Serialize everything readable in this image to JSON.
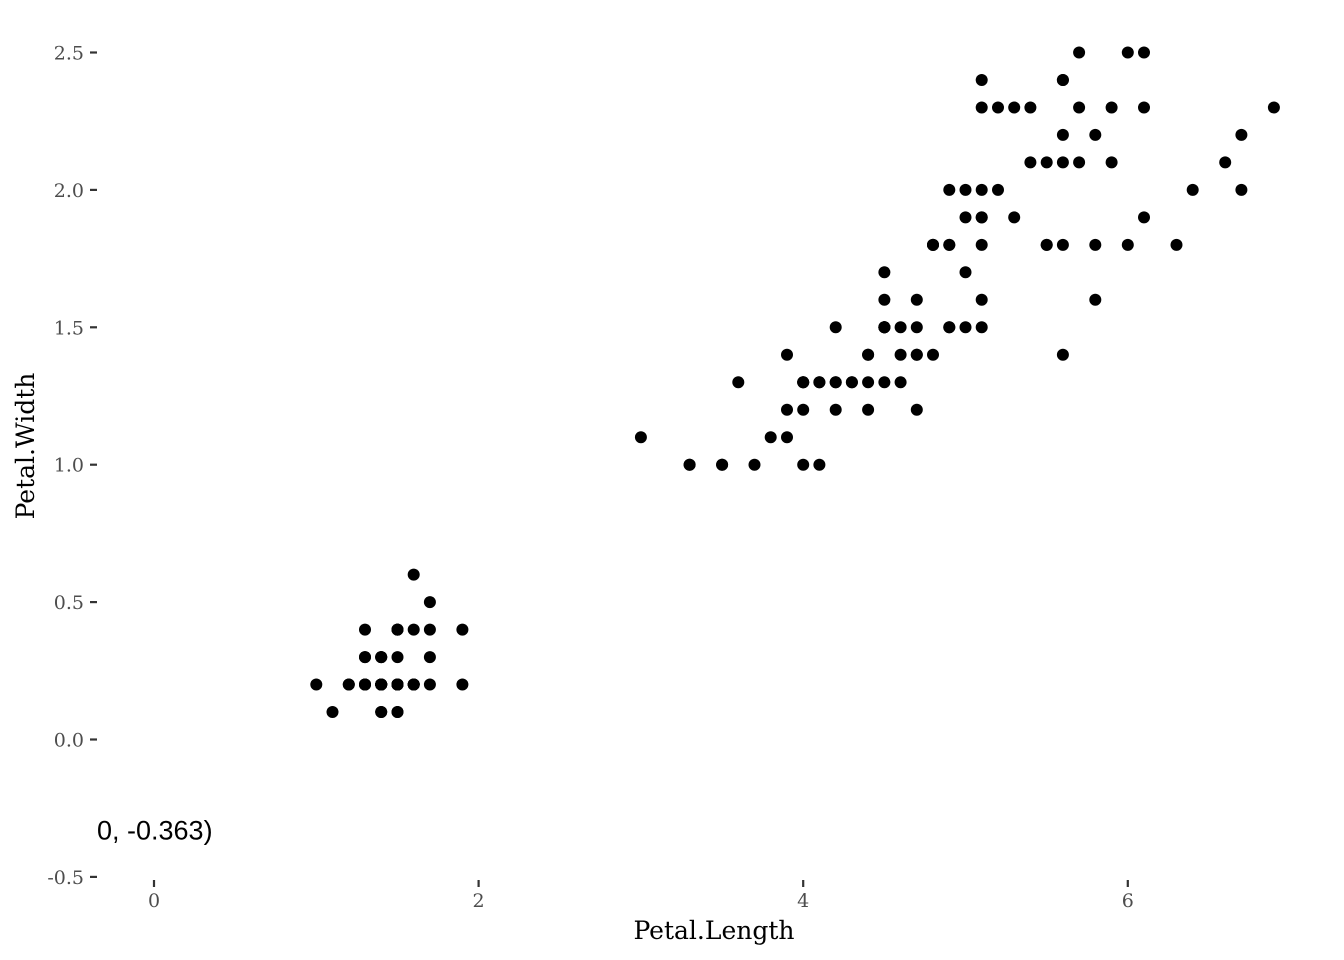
{
  "chart_data": {
    "type": "scatter",
    "title": "",
    "xlabel": "Petal.Length",
    "ylabel": "Petal.Width",
    "xlim": [
      -0.35,
      7.1
    ],
    "ylim": [
      -0.5,
      2.6
    ],
    "x_ticks": [
      0,
      2,
      4,
      6
    ],
    "x_tick_labels": [
      "0",
      "2",
      "4",
      "6"
    ],
    "y_ticks": [
      -0.5,
      0.0,
      0.5,
      1.0,
      1.5,
      2.0,
      2.5
    ],
    "y_tick_labels": [
      "-0.5",
      "0.0",
      "0.5",
      "1.0",
      "1.5",
      "2.0",
      "2.5"
    ],
    "grid": false,
    "legend": "none",
    "point_color": "#000000",
    "annotation": {
      "text": "0, -0.363)",
      "x": 0,
      "y": -0.363
    },
    "points": [
      [
        1.4,
        0.2
      ],
      [
        1.4,
        0.2
      ],
      [
        1.3,
        0.2
      ],
      [
        1.5,
        0.2
      ],
      [
        1.4,
        0.2
      ],
      [
        1.7,
        0.4
      ],
      [
        1.4,
        0.3
      ],
      [
        1.5,
        0.2
      ],
      [
        1.4,
        0.2
      ],
      [
        1.5,
        0.1
      ],
      [
        1.5,
        0.2
      ],
      [
        1.6,
        0.2
      ],
      [
        1.4,
        0.1
      ],
      [
        1.1,
        0.1
      ],
      [
        1.2,
        0.2
      ],
      [
        1.5,
        0.4
      ],
      [
        1.3,
        0.4
      ],
      [
        1.4,
        0.3
      ],
      [
        1.7,
        0.3
      ],
      [
        1.5,
        0.3
      ],
      [
        1.7,
        0.2
      ],
      [
        1.5,
        0.4
      ],
      [
        1.0,
        0.2
      ],
      [
        1.7,
        0.5
      ],
      [
        1.9,
        0.2
      ],
      [
        1.6,
        0.2
      ],
      [
        1.6,
        0.4
      ],
      [
        1.5,
        0.2
      ],
      [
        1.4,
        0.2
      ],
      [
        1.6,
        0.2
      ],
      [
        1.6,
        0.2
      ],
      [
        1.5,
        0.4
      ],
      [
        1.5,
        0.1
      ],
      [
        1.4,
        0.2
      ],
      [
        1.5,
        0.2
      ],
      [
        1.2,
        0.2
      ],
      [
        1.3,
        0.2
      ],
      [
        1.4,
        0.1
      ],
      [
        1.3,
        0.2
      ],
      [
        1.5,
        0.2
      ],
      [
        1.3,
        0.3
      ],
      [
        1.3,
        0.3
      ],
      [
        1.3,
        0.2
      ],
      [
        1.6,
        0.6
      ],
      [
        1.9,
        0.4
      ],
      [
        1.4,
        0.3
      ],
      [
        1.6,
        0.2
      ],
      [
        1.4,
        0.2
      ],
      [
        1.5,
        0.2
      ],
      [
        1.4,
        0.2
      ],
      [
        4.7,
        1.4
      ],
      [
        4.5,
        1.5
      ],
      [
        4.9,
        1.5
      ],
      [
        4.0,
        1.3
      ],
      [
        4.6,
        1.5
      ],
      [
        4.5,
        1.3
      ],
      [
        4.7,
        1.6
      ],
      [
        3.3,
        1.0
      ],
      [
        4.6,
        1.3
      ],
      [
        3.9,
        1.4
      ],
      [
        3.5,
        1.0
      ],
      [
        4.2,
        1.5
      ],
      [
        4.0,
        1.0
      ],
      [
        4.7,
        1.4
      ],
      [
        3.6,
        1.3
      ],
      [
        4.4,
        1.4
      ],
      [
        4.5,
        1.5
      ],
      [
        4.1,
        1.0
      ],
      [
        4.5,
        1.5
      ],
      [
        3.9,
        1.1
      ],
      [
        4.8,
        1.8
      ],
      [
        4.0,
        1.3
      ],
      [
        4.9,
        1.5
      ],
      [
        4.7,
        1.2
      ],
      [
        4.3,
        1.3
      ],
      [
        4.4,
        1.4
      ],
      [
        4.8,
        1.4
      ],
      [
        5.0,
        1.7
      ],
      [
        4.5,
        1.5
      ],
      [
        3.5,
        1.0
      ],
      [
        3.8,
        1.1
      ],
      [
        3.7,
        1.0
      ],
      [
        3.9,
        1.2
      ],
      [
        5.1,
        1.6
      ],
      [
        4.5,
        1.5
      ],
      [
        4.5,
        1.6
      ],
      [
        4.7,
        1.5
      ],
      [
        4.4,
        1.3
      ],
      [
        4.1,
        1.3
      ],
      [
        4.0,
        1.3
      ],
      [
        4.4,
        1.2
      ],
      [
        4.6,
        1.4
      ],
      [
        4.0,
        1.2
      ],
      [
        3.3,
        1.0
      ],
      [
        4.2,
        1.3
      ],
      [
        4.2,
        1.2
      ],
      [
        4.2,
        1.3
      ],
      [
        4.3,
        1.3
      ],
      [
        3.0,
        1.1
      ],
      [
        4.1,
        1.3
      ],
      [
        6.0,
        2.5
      ],
      [
        5.1,
        1.9
      ],
      [
        5.9,
        2.1
      ],
      [
        5.6,
        1.8
      ],
      [
        5.8,
        2.2
      ],
      [
        6.6,
        2.1
      ],
      [
        4.5,
        1.7
      ],
      [
        6.3,
        1.8
      ],
      [
        5.8,
        1.8
      ],
      [
        6.1,
        2.5
      ],
      [
        5.1,
        2.0
      ],
      [
        5.3,
        1.9
      ],
      [
        5.5,
        2.1
      ],
      [
        5.0,
        2.0
      ],
      [
        5.1,
        2.4
      ],
      [
        5.3,
        2.3
      ],
      [
        5.5,
        1.8
      ],
      [
        6.7,
        2.2
      ],
      [
        6.9,
        2.3
      ],
      [
        5.0,
        1.5
      ],
      [
        5.7,
        2.3
      ],
      [
        4.9,
        2.0
      ],
      [
        6.7,
        2.0
      ],
      [
        4.9,
        1.8
      ],
      [
        5.7,
        2.1
      ],
      [
        6.0,
        1.8
      ],
      [
        4.8,
        1.8
      ],
      [
        4.9,
        1.8
      ],
      [
        5.6,
        2.1
      ],
      [
        5.8,
        1.6
      ],
      [
        6.1,
        1.9
      ],
      [
        6.4,
        2.0
      ],
      [
        5.6,
        2.2
      ],
      [
        5.1,
        1.5
      ],
      [
        5.6,
        1.4
      ],
      [
        6.1,
        2.3
      ],
      [
        5.6,
        2.4
      ],
      [
        5.5,
        1.8
      ],
      [
        4.8,
        1.8
      ],
      [
        5.4,
        2.1
      ],
      [
        5.6,
        2.4
      ],
      [
        5.1,
        2.3
      ],
      [
        5.1,
        1.9
      ],
      [
        5.9,
        2.3
      ],
      [
        5.7,
        2.5
      ],
      [
        5.2,
        2.3
      ],
      [
        5.0,
        1.9
      ],
      [
        5.2,
        2.0
      ],
      [
        5.4,
        2.3
      ],
      [
        5.1,
        1.8
      ]
    ]
  }
}
